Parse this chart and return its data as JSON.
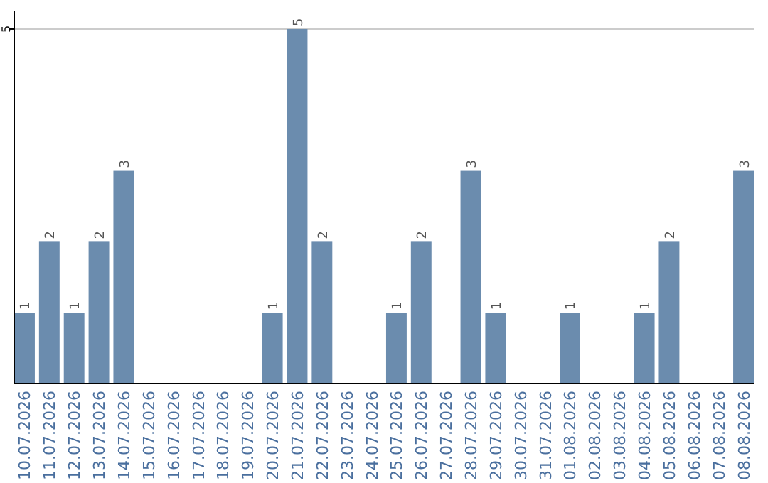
{
  "chart_data": {
    "type": "bar",
    "categories": [
      "10.07.2026",
      "11.07.2026",
      "12.07.2026",
      "13.07.2026",
      "14.07.2026",
      "15.07.2026",
      "16.07.2026",
      "17.07.2026",
      "18.07.2026",
      "19.07.2026",
      "20.07.2026",
      "21.07.2026",
      "22.07.2026",
      "23.07.2026",
      "24.07.2026",
      "25.07.2026",
      "26.07.2026",
      "27.07.2026",
      "28.07.2026",
      "29.07.2026",
      "30.07.2026",
      "31.07.2026",
      "01.08.2026",
      "02.08.2026",
      "03.08.2026",
      "04.08.2026",
      "05.08.2026",
      "06.08.2026",
      "07.08.2026",
      "08.08.2026"
    ],
    "values": [
      1,
      2,
      1,
      2,
      3,
      0,
      0,
      0,
      0,
      0,
      1,
      5,
      2,
      0,
      0,
      1,
      2,
      0,
      3,
      1,
      0,
      0,
      1,
      0,
      0,
      1,
      2,
      0,
      0,
      3
    ],
    "value_labels": [
      "1",
      "2",
      "1",
      "2",
      "3",
      null,
      null,
      null,
      null,
      null,
      "1",
      "5",
      "2",
      null,
      null,
      "1",
      "2",
      null,
      "3",
      "1",
      null,
      null,
      "1",
      null,
      null,
      "1",
      "2",
      null,
      null,
      "3"
    ],
    "color": "#6b8cae",
    "ylim": [
      0,
      5.25
    ],
    "yticks": [
      5
    ],
    "grid": "y"
  }
}
